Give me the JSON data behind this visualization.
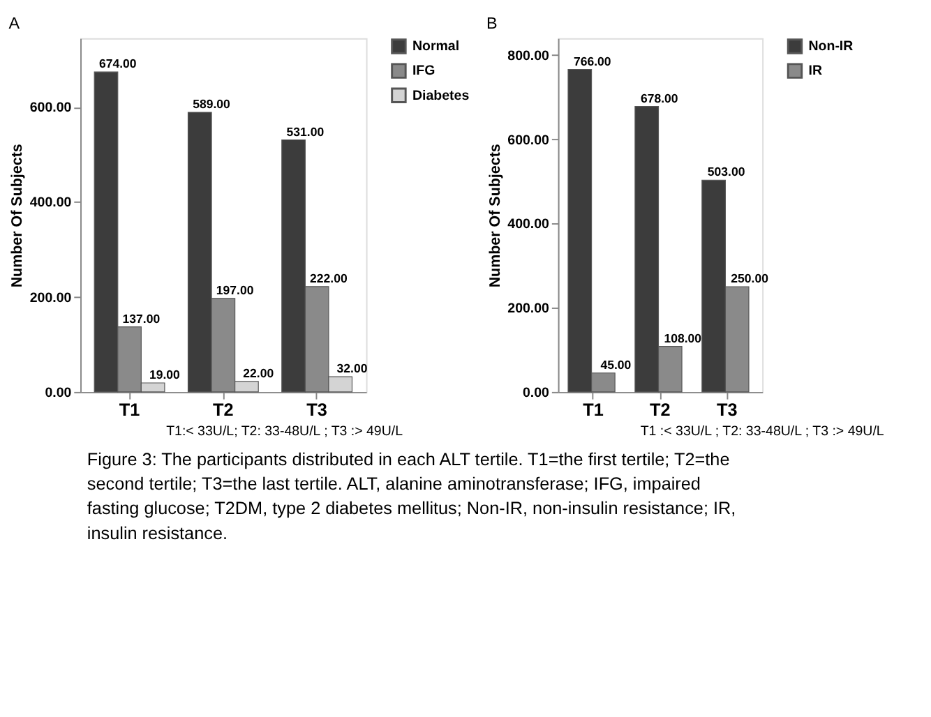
{
  "chart_data": [
    {
      "type": "bar",
      "title": "A",
      "ylabel": "Number Of Subjects",
      "categories": [
        "T1",
        "T2",
        "T3"
      ],
      "series": [
        {
          "name": "Normal",
          "color": "#3c3c3c",
          "values": [
            674,
            589,
            531
          ],
          "value_labels": [
            "674.00",
            "589.00",
            "531.00"
          ]
        },
        {
          "name": "IFG",
          "color": "#8a8a8a",
          "values": [
            137,
            197,
            222
          ],
          "value_labels": [
            "137.00",
            "197.00",
            "222.00"
          ]
        },
        {
          "name": "Diabetes",
          "color": "#d4d4d4",
          "values": [
            19,
            22,
            32
          ],
          "value_labels": [
            "19.00",
            "22.00",
            "32.00"
          ]
        }
      ],
      "ylim": [
        0,
        745
      ],
      "yticks": [
        {
          "value": 0,
          "label": "0.00"
        },
        {
          "value": 200,
          "label": "200.00"
        },
        {
          "value": 400,
          "label": "400.00"
        },
        {
          "value": 600,
          "label": "600.00"
        }
      ],
      "grid": false,
      "legend": "top right",
      "annotations": [
        "T1:< 33U/L;     T2: 33-48U/L ;   T3 :> 49U/L"
      ]
    },
    {
      "type": "bar",
      "title": "B",
      "ylabel": "Number Of Subjects",
      "categories": [
        "T1",
        "T2",
        "T3"
      ],
      "series": [
        {
          "name": "Non-IR",
          "color": "#3c3c3c",
          "values": [
            766,
            678,
            503
          ],
          "value_labels": [
            "766.00",
            "678.00",
            "503.00"
          ]
        },
        {
          "name": "IR",
          "color": "#8a8a8a",
          "values": [
            45,
            108,
            250
          ],
          "value_labels": [
            "45.00",
            "108.00",
            "250.00"
          ]
        }
      ],
      "ylim": [
        0,
        840
      ],
      "yticks": [
        {
          "value": 0,
          "label": "0.00"
        },
        {
          "value": 200,
          "label": "200.00"
        },
        {
          "value": 400,
          "label": "400.00"
        },
        {
          "value": 600,
          "label": "600.00"
        },
        {
          "value": 800,
          "label": "800.00"
        }
      ],
      "grid": false,
      "legend": "top right",
      "annotations": [
        "T1 :< 33U/L ;     T2: 33-48U/L ;     T3 :> 49U/L",
        "Figure 3: The participants distributed in each ALT tertile. T1=the first tertile; T2=the second tertile; T3=the last tertile. ALT, alanine aminotransferase; IFG, impaired fasting glucose; T2DM, type 2 diabetes mellitus; Non-IR, non-insulin resistance; IR, insulin resistance."
      ]
    }
  ]
}
